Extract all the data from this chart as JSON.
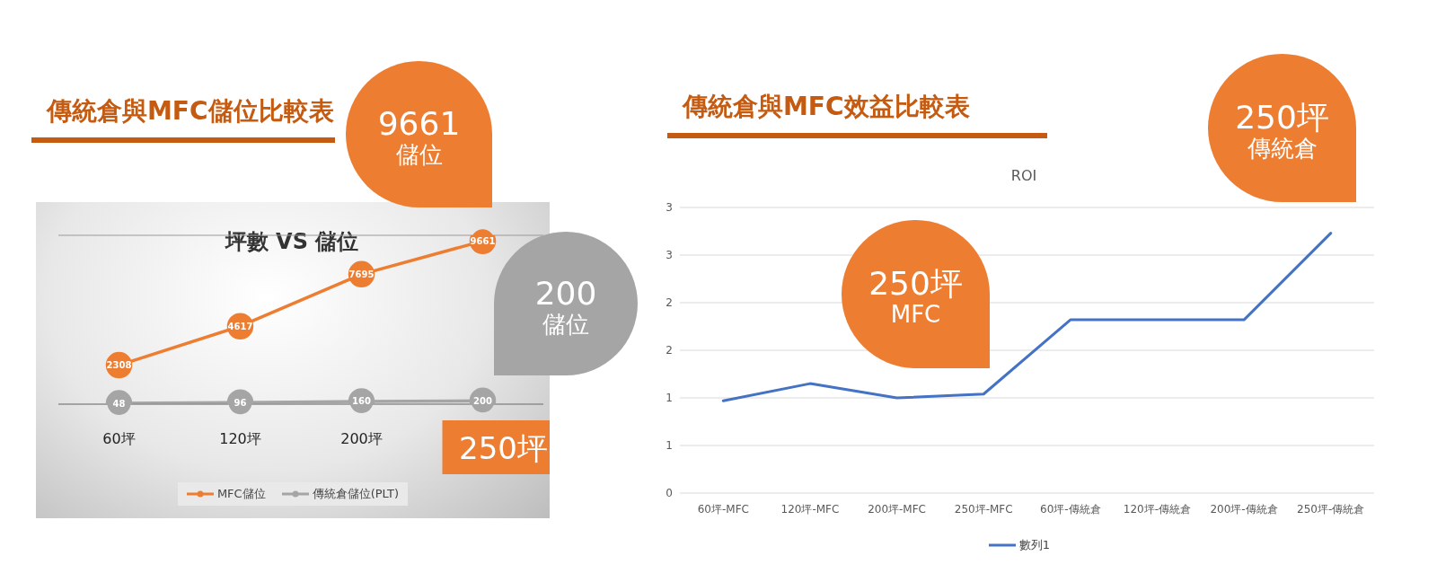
{
  "chart_data": [
    {
      "type": "line",
      "title": "傳統倉與MFC儲位比較表",
      "subtitle": "坪數 VS 儲位",
      "categories": [
        "60坪",
        "120坪",
        "200坪",
        "250坪"
      ],
      "series": [
        {
          "name": "MFC儲位",
          "color": "#ed7d31",
          "values": [
            2308,
            4617,
            7695,
            9661
          ]
        },
        {
          "name": "傳統倉儲位(PLT)",
          "color": "#a5a5a5",
          "values": [
            48,
            96,
            160,
            200
          ]
        }
      ],
      "tick_labels": "x",
      "grid": "y",
      "legend": "bottom",
      "marker": "circle",
      "data_labels": true,
      "annotations": [
        "9661",
        "儲位",
        "200",
        "儲位"
      ]
    },
    {
      "type": "line",
      "title": "傳統倉與MFC效益比較表",
      "subtitle": "ROI",
      "categories": [
        "60坪-MFC",
        "120坪-MFC",
        "200坪-MFC",
        "250坪-MFC",
        "60坪-傳統倉",
        "120坪-傳統倉",
        "200坪-傳統倉",
        "250坪-傳統倉"
      ],
      "series": [
        {
          "name": "數列1",
          "color": "#4472c4",
          "values": [
            0.97,
            1.15,
            1.0,
            1.04,
            1.82,
            1.82,
            1.82,
            2.73
          ]
        }
      ],
      "ylim": [
        0,
        3
      ],
      "yticks": [
        {
          "value": 0,
          "label": "0"
        },
        {
          "value": 0.5,
          "label": "1"
        },
        {
          "value": 1,
          "label": "1"
        },
        {
          "value": 1.5,
          "label": "2"
        },
        {
          "value": 2,
          "label": "2"
        },
        {
          "value": 2.5,
          "label": "3"
        },
        {
          "value": 3,
          "label": "3"
        }
      ],
      "grid": "y",
      "legend": "bottom",
      "marker": "none",
      "annotations": [
        "250坪",
        "MFC",
        "250坪",
        "傳統倉"
      ]
    }
  ]
}
